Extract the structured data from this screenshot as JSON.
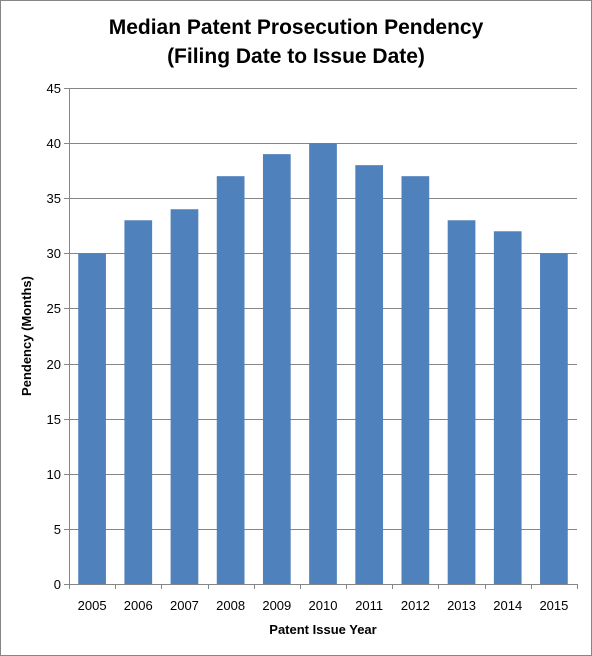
{
  "chart_data": {
    "type": "bar",
    "title_lines": [
      "Median Patent Prosecution Pendency",
      "(Filing Date to Issue Date)"
    ],
    "xlabel": "Patent Issue Year",
    "ylabel": "Pendency (Months)",
    "categories": [
      "2005",
      "2006",
      "2007",
      "2008",
      "2009",
      "2010",
      "2011",
      "2012",
      "2013",
      "2014",
      "2015"
    ],
    "values": [
      30,
      33,
      34,
      37,
      39,
      40,
      38,
      37,
      33,
      32,
      30
    ],
    "ylim": [
      0,
      45
    ],
    "yticks": [
      0,
      5,
      10,
      15,
      20,
      25,
      30,
      35,
      40,
      45
    ],
    "grid": true,
    "legend": "none",
    "bar_color": "#4F81BD",
    "grid_color": "#868686"
  }
}
